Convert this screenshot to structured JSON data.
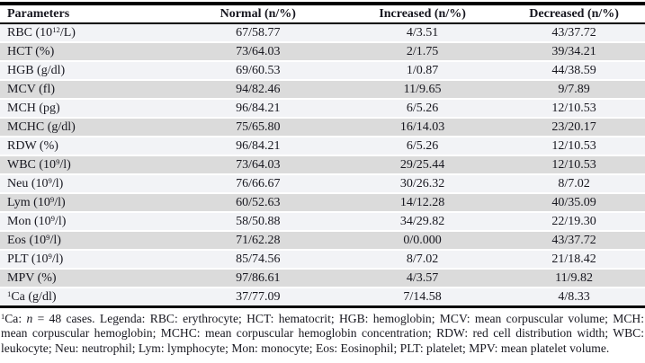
{
  "table": {
    "columns": [
      {
        "label": "Parameters"
      },
      {
        "label": "Normal (n/%)"
      },
      {
        "label": "Increased (n/%)"
      },
      {
        "label": "Decreased (n/%)"
      }
    ],
    "rows": [
      {
        "parameter": "RBC (10^{12}/L)",
        "normal": "67/58.77",
        "increased": "4/3.51",
        "decreased": "43/37.72"
      },
      {
        "parameter": "HCT (%)",
        "normal": "73/64.03",
        "increased": "2/1.75",
        "decreased": "39/34.21"
      },
      {
        "parameter": "HGB (g/dl)",
        "normal": "69/60.53",
        "increased": "1/0.87",
        "decreased": "44/38.59"
      },
      {
        "parameter": "MCV (fl)",
        "normal": "94/82.46",
        "increased": "11/9.65",
        "decreased": "9/7.89"
      },
      {
        "parameter": "MCH (pg)",
        "normal": "96/84.21",
        "increased": "6/5.26",
        "decreased": "12/10.53"
      },
      {
        "parameter": "MCHC (g/dl)",
        "normal": "75/65.80",
        "increased": "16/14.03",
        "decreased": "23/20.17"
      },
      {
        "parameter": "RDW (%)",
        "normal": "96/84.21",
        "increased": "6/5.26",
        "decreased": "12/10.53"
      },
      {
        "parameter": "WBC (10^{9}/l)",
        "normal": "73/64.03",
        "increased": "29/25.44",
        "decreased": "12/10.53"
      },
      {
        "parameter": "Neu (10^{9}/l)",
        "normal": "76/66.67",
        "increased": "30/26.32",
        "decreased": "8/7.02"
      },
      {
        "parameter": "Lym (10^{9}/l)",
        "normal": "60/52.63",
        "increased": "14/12.28",
        "decreased": "40/35.09"
      },
      {
        "parameter": "Mon (10^{9}/l)",
        "normal": "58/50.88",
        "increased": "34/29.82",
        "decreased": "22/19.30"
      },
      {
        "parameter": "Eos (10^{9}/l)",
        "normal": "71/62.28",
        "increased": "0/0.000",
        "decreased": "43/37.72"
      },
      {
        "parameter": "PLT (10^{9}/l)",
        "normal": "85/74.56",
        "increased": "8/7.02",
        "decreased": "21/18.42"
      },
      {
        "parameter": "MPV (%)",
        "normal": "97/86.61",
        "increased": "4/3.57",
        "decreased": "11/9.82"
      },
      {
        "parameter": "^{1}Ca (g/dl)",
        "normal": "37/77.09",
        "increased": "7/14.58",
        "decreased": "4/8.33"
      }
    ]
  },
  "footnote": "^{1}Ca: *n* = 48 cases. Legenda: RBC: erythrocyte; HCT: hematocrit; HGB: hemoglobin; MCV: mean corpuscular volume; MCH: mean corpuscular hemoglobin; MCHC: mean corpuscular hemoglobin concentration; RDW: red cell distribution width; WBC: leukocyte; Neu: neutrophil; Lym: lymphocyte; Mon: monocyte; Eos: Eosinophil; PLT: platelet; MPV: mean platelet volume.",
  "colors": {
    "stripe_light": "#f2f3f6",
    "stripe_gray": "#dbdbdb",
    "border": "#000000",
    "text": "#17171f",
    "bg": "#ffffff"
  }
}
